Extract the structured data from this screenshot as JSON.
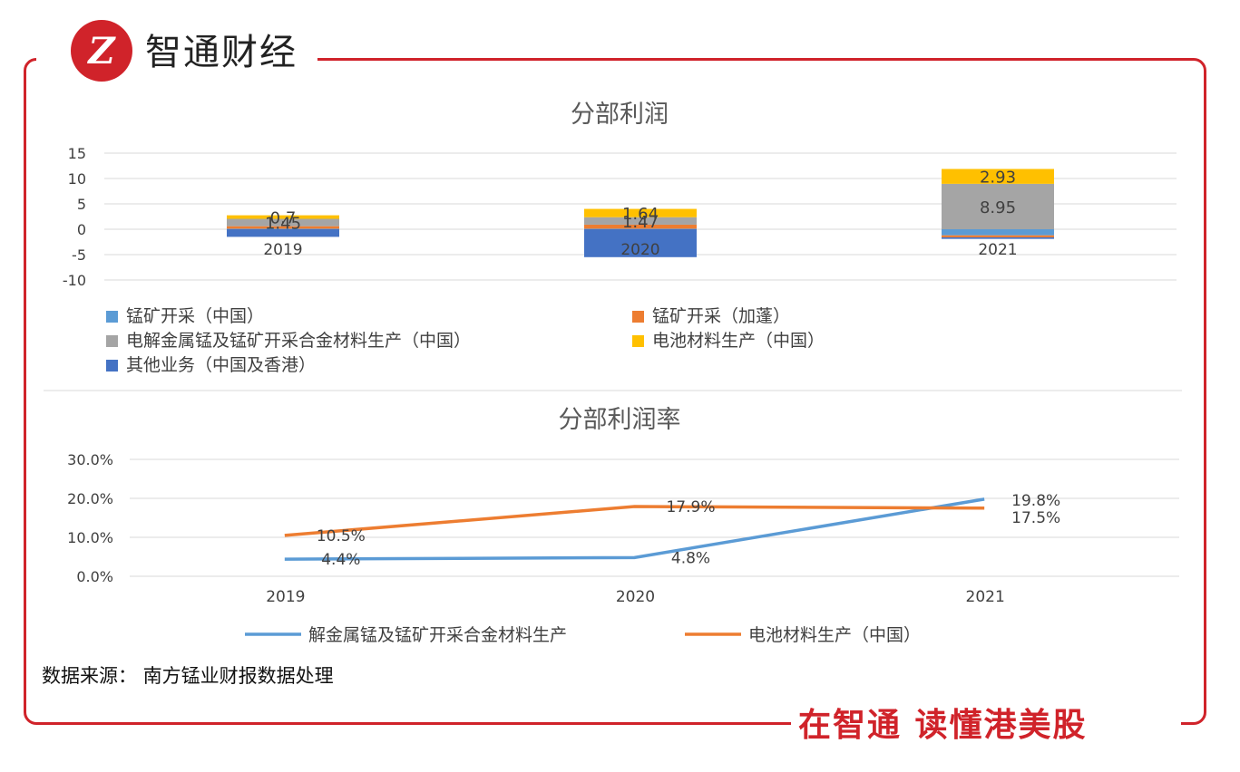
{
  "header": {
    "logo_mark": "Z",
    "brand": "智通财经"
  },
  "footer": {
    "slogan": "在智通 读懂港美股"
  },
  "source": "数据来源： 南方锰业财报数据处理",
  "colors": {
    "accent": "#d0232a",
    "s1": "#5b9bd5",
    "s2": "#ed7d31",
    "s3": "#a5a5a5",
    "s4": "#ffc000",
    "s5": "#4472c4"
  },
  "chart_data": [
    {
      "type": "bar",
      "stacked": true,
      "title": "分部利润",
      "categories": [
        "2019",
        "2020",
        "2021"
      ],
      "ylim": [
        -10,
        15
      ],
      "yticks": [
        "15",
        "10",
        "5",
        "0",
        "-5",
        "-10"
      ],
      "series": [
        {
          "name": "锰矿开采（中国）",
          "values": [
            0.1,
            0.1,
            -1.2
          ]
        },
        {
          "name": "锰矿开采（加蓬）",
          "values": [
            0.5,
            0.8,
            -0.4
          ]
        },
        {
          "name": "电解金属锰及锰矿开采合金材料生产（中国）",
          "values": [
            1.45,
            1.47,
            8.95
          ]
        },
        {
          "name": "电池材料生产（中国）",
          "values": [
            0.7,
            1.64,
            2.93
          ]
        },
        {
          "name": "其他业务（中国及香港）",
          "values": [
            -1.5,
            -5.5,
            -0.3
          ]
        }
      ],
      "data_labels": [
        {
          "category": "2019",
          "text": "0.7"
        },
        {
          "category": "2019",
          "text": "1.45"
        },
        {
          "category": "2020",
          "text": "1.64"
        },
        {
          "category": "2020",
          "text": "1.47"
        },
        {
          "category": "2021",
          "text": "2.93"
        },
        {
          "category": "2021",
          "text": "8.95"
        }
      ],
      "legend": "bottom"
    },
    {
      "type": "line",
      "title": "分部利润率",
      "categories": [
        "2019",
        "2020",
        "2021"
      ],
      "ylim": [
        0,
        0.3
      ],
      "yticks": [
        "30.0%",
        "20.0%",
        "10.0%",
        "0.0%"
      ],
      "series": [
        {
          "name": "解金属锰及锰矿开采合金材料生产",
          "values": [
            0.044,
            0.048,
            0.198
          ],
          "labels": [
            "4.4%",
            "4.8%",
            "19.8%"
          ]
        },
        {
          "name": "电池材料生产（中国）",
          "values": [
            0.105,
            0.179,
            0.175
          ],
          "labels": [
            "10.5%",
            "17.9%",
            "17.5%"
          ]
        }
      ],
      "legend": "bottom"
    }
  ]
}
